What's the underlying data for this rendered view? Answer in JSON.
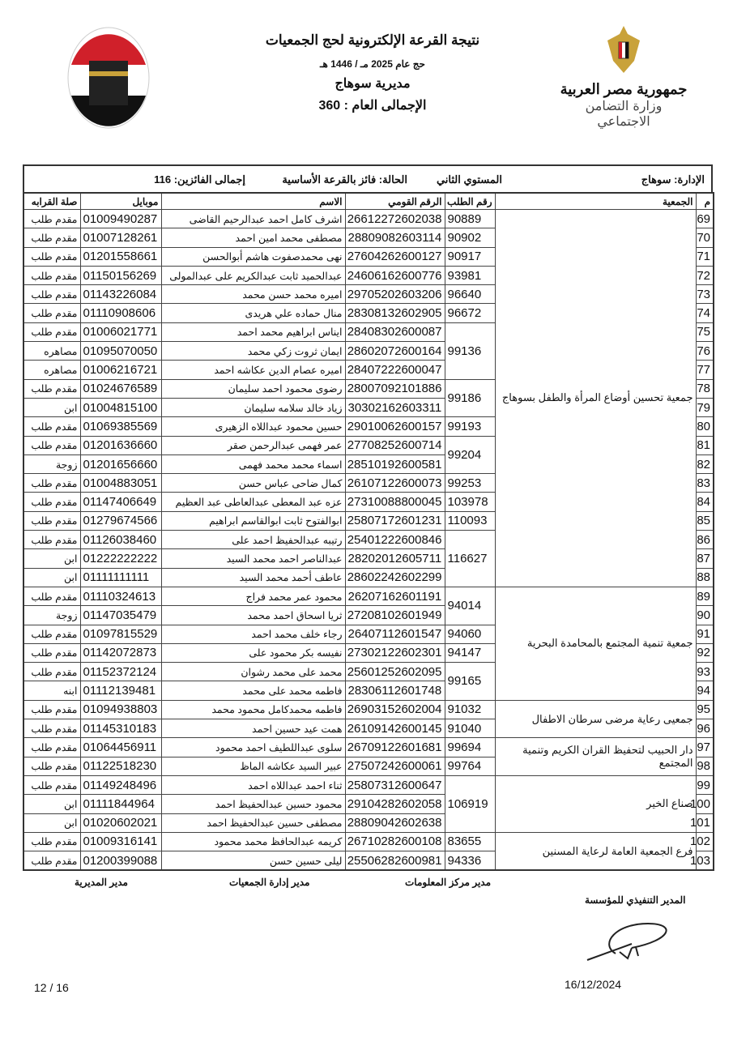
{
  "header": {
    "title": "نتيجة القرعة الإلكترونية لحج الجمعيات",
    "subtitle": "حج عام 2025 مـ / 1446 هـ",
    "directorate": "مديرية سوهاج",
    "grand_total": "الإجمالى العام : 360"
  },
  "logo_right": {
    "line1": "جمهورية مصر العربية",
    "line2": "وزارة التضامن الاجتماعي"
  },
  "meta": {
    "administration": "الإدارة:  سوهاج",
    "level": "المستوي الثاني",
    "status": "الحالة:  فائز بالقرعة الأساسية",
    "winners": "إجمالى الفائزين:  116"
  },
  "columns": {
    "m": "م",
    "association": "الجمعية",
    "request": "رقم الطلب",
    "national_id": "الرقم القومي",
    "name": "الاسم",
    "mobile": "موبايل",
    "relation": "صلة القرابه"
  },
  "associations": [
    {
      "name": "جمعية تحسين أوضاع المرأة والطفل بسوهاج",
      "requests": [
        {
          "no": "90889",
          "members": [
            [
              "69",
              "26612272602038",
              "اشرف كامل احمد عبدالرحيم القاضى",
              "01009490287",
              "مقدم طلب"
            ]
          ]
        },
        {
          "no": "90902",
          "members": [
            [
              "70",
              "28809082603114",
              "مصطفى محمد امين احمد",
              "01007128261",
              "مقدم طلب"
            ]
          ]
        },
        {
          "no": "90917",
          "members": [
            [
              "71",
              "27604262600127",
              "نهى محمدصفوت هاشم أبوالحسن",
              "01201558661",
              "مقدم طلب"
            ]
          ]
        },
        {
          "no": "93981",
          "members": [
            [
              "72",
              "24606162600776",
              "عبدالحميد ثابت عبدالكريم على عبدالمولى",
              "01150156269",
              "مقدم طلب"
            ]
          ]
        },
        {
          "no": "96640",
          "members": [
            [
              "73",
              "29705202603206",
              "اميره محمد حسن محمد",
              "01143226084",
              "مقدم طلب"
            ]
          ]
        },
        {
          "no": "96672",
          "members": [
            [
              "74",
              "28308132602905",
              "منال حماده علي هريدى",
              "01110908606",
              "مقدم طلب"
            ]
          ]
        },
        {
          "no": "99136",
          "members": [
            [
              "75",
              "28408302600087",
              "ايناس ابراهيم محمد احمد",
              "01006021771",
              "مقدم طلب"
            ],
            [
              "76",
              "28602072600164",
              "ايمان ثروت زكي محمد",
              "01095070050",
              "مصاهره"
            ],
            [
              "77",
              "28407222600047",
              "اميره عصام الدين عكاشه احمد",
              "01006216721",
              "مصاهره"
            ]
          ]
        },
        {
          "no": "99186",
          "members": [
            [
              "78",
              "28007092101886",
              "رضوى محمود احمد سليمان",
              "01024676589",
              "مقدم طلب"
            ],
            [
              "79",
              "30302162603311",
              "زياد خالد سلامه سليمان",
              "01004815100",
              "ابن"
            ]
          ]
        },
        {
          "no": "99193",
          "members": [
            [
              "80",
              "29010062600157",
              "حسين محمود عبداللاه الزهيرى",
              "01069385569",
              "مقدم طلب"
            ]
          ]
        },
        {
          "no": "99204",
          "members": [
            [
              "81",
              "27708252600714",
              "عمر فهمى عبدالرحمن صقر",
              "01201636660",
              "مقدم طلب"
            ],
            [
              "82",
              "28510192600581",
              "اسماء محمد محمد فهمى",
              "01201656660",
              "زوجة"
            ]
          ]
        },
        {
          "no": "99253",
          "members": [
            [
              "83",
              "26107122600073",
              "كمال ضاحى عباس حسن",
              "01004883051",
              "مقدم طلب"
            ]
          ]
        },
        {
          "no": "103978",
          "members": [
            [
              "84",
              "27310088800045",
              "عزه عبد المعطى عبدالعاطى عبد العظيم",
              "01147406649",
              "مقدم طلب"
            ]
          ]
        },
        {
          "no": "110093",
          "members": [
            [
              "85",
              "25807172601231",
              "ابوالفتوح ثابت ابوالقاسم ابراهيم",
              "01279674566",
              "مقدم طلب"
            ]
          ]
        },
        {
          "no": "116627",
          "members": [
            [
              "86",
              "25401222600846",
              "رتيبه عبدالحفيظ احمد على",
              "01126038460",
              "مقدم طلب"
            ],
            [
              "87",
              "28202012605711",
              "عبدالناصر احمد محمد السيد",
              "01222222222",
              "ابن"
            ],
            [
              "88",
              "28602242602299",
              "عاطف أحمد محمد السيد",
              "01111111111",
              "ابن"
            ]
          ]
        }
      ]
    },
    {
      "name": "جمعية تنمية المجتمع بالمحامدة البحرية",
      "requests": [
        {
          "no": "94014",
          "members": [
            [
              "89",
              "26207162601191",
              "محمود عمر محمد فراج",
              "01110324613",
              "مقدم طلب"
            ],
            [
              "90",
              "27208102601949",
              "ثريا اسحاق احمد محمد",
              "01147035479",
              "زوجة"
            ]
          ]
        },
        {
          "no": "94060",
          "members": [
            [
              "91",
              "26407112601547",
              "رجاء خلف محمد احمد",
              "01097815529",
              "مقدم طلب"
            ]
          ]
        },
        {
          "no": "94147",
          "members": [
            [
              "92",
              "27302122602301",
              "نفيسه بكر محمود على",
              "01142072873",
              "مقدم طلب"
            ]
          ]
        },
        {
          "no": "99165",
          "members": [
            [
              "93",
              "25601252602095",
              "محمد على محمد رشوان",
              "01152372124",
              "مقدم طلب"
            ],
            [
              "94",
              "28306112601748",
              "فاطمه محمد على محمد",
              "01112139481",
              "ابنه"
            ]
          ]
        }
      ]
    },
    {
      "name": "جمعيى رعاية مرضى سرطان الاطفال",
      "requests": [
        {
          "no": "91032",
          "members": [
            [
              "95",
              "26903152602004",
              "فاطمه محمدكامل محمود محمد",
              "01094938803",
              "مقدم طلب"
            ]
          ]
        },
        {
          "no": "91040",
          "members": [
            [
              "96",
              "26109142600145",
              "همت عيد حسين احمد",
              "01145310183",
              "مقدم طلب"
            ]
          ]
        }
      ]
    },
    {
      "name": "دار الحبيب لتحفيظ القران الكريم وتنمية المجتمع",
      "requests": [
        {
          "no": "99694",
          "members": [
            [
              "97",
              "26709122601681",
              "سلوى عبداللطيف احمد محمود",
              "01064456911",
              "مقدم طلب"
            ]
          ]
        },
        {
          "no": "99764",
          "members": [
            [
              "98",
              "27507242600061",
              "عبير السيد عكاشه الماظ",
              "01122518230",
              "مقدم طلب"
            ]
          ]
        }
      ]
    },
    {
      "name": "صناع الخير",
      "requests": [
        {
          "no": "106919",
          "members": [
            [
              "99",
              "25807312600647",
              "ثناء احمد عبداللاه احمد",
              "01149248496",
              "مقدم طلب"
            ],
            [
              "100",
              "29104282602058",
              "محمود حسين عبدالحفيظ احمد",
              "01111844964",
              "ابن"
            ],
            [
              "101",
              "28809042602638",
              "مصطفى حسين عبدالحفيظ احمد",
              "01020602021",
              "ابن"
            ]
          ]
        }
      ]
    },
    {
      "name": "فرع الجمعية العامة لرعاية المسنين",
      "requests": [
        {
          "no": "83655",
          "members": [
            [
              "102",
              "26710282600108",
              "كريمه عبدالحافظ محمد محمود",
              "01009316141",
              "مقدم طلب"
            ]
          ]
        },
        {
          "no": "94336",
          "members": [
            [
              "103",
              "25506282600981",
              "ليلى حسين حسن",
              "01200399088",
              "مقدم طلب"
            ]
          ]
        }
      ]
    }
  ],
  "footer": {
    "sig1": "مدير مركز المعلومات",
    "sig2": "مدير إدارة الجمعيات",
    "sig3": "مدير المديرية",
    "exec": "المدير التنفيذي للمؤسسة",
    "date": "16/12/2024",
    "page": "12   /  16"
  }
}
